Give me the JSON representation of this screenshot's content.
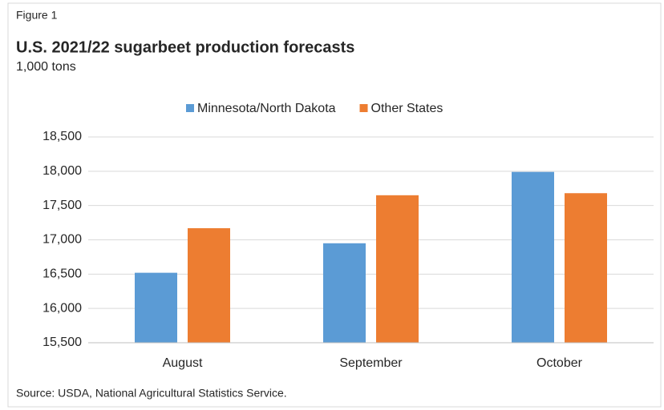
{
  "chart_data": {
    "type": "bar",
    "figure_label": "Figure 1",
    "title": "U.S. 2021/22 sugarbeet production  forecasts",
    "subtitle": "1,000 tons",
    "source": "Source: USDA, National Agricultural Statistics Service.",
    "categories": [
      "August",
      "September",
      "October"
    ],
    "series": [
      {
        "name": "Minnesota/North Dakota",
        "color": "#5b9bd5",
        "values": [
          16520,
          16950,
          17990
        ]
      },
      {
        "name": "Other States",
        "color": "#ed7d31",
        "values": [
          17170,
          17650,
          17680
        ]
      }
    ],
    "ylim": [
      15500,
      18500
    ],
    "yticks": [
      {
        "value": 15500,
        "label": "15,500"
      },
      {
        "value": 16000,
        "label": "16,000"
      },
      {
        "value": 16500,
        "label": "16,500"
      },
      {
        "value": 17000,
        "label": "17,000"
      },
      {
        "value": 17500,
        "label": "17,500"
      },
      {
        "value": 18000,
        "label": "18,000"
      },
      {
        "value": 18500,
        "label": "18,500"
      }
    ],
    "grid": true
  }
}
